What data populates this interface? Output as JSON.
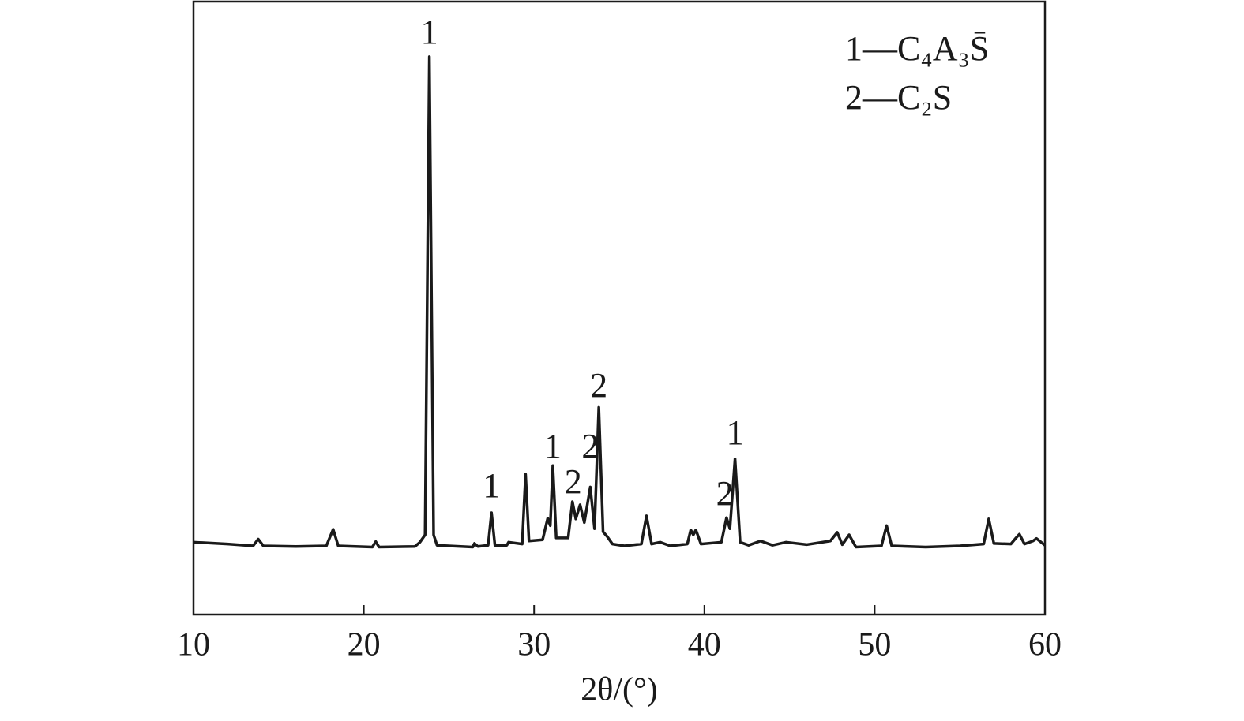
{
  "chart_data": {
    "type": "line",
    "x_label": "2θ/(°)",
    "xlim": [
      10,
      60
    ],
    "xticks": [
      10,
      20,
      30,
      40,
      50,
      60
    ],
    "ylim": [
      0,
      100
    ],
    "legend": [
      "1—C₄A₃S̄",
      "2—C₂S"
    ],
    "legend_position": "upper right",
    "series": [
      {
        "color": "#1a1a1a",
        "x": [
          10,
          12,
          13.5,
          13.8,
          14.1,
          16,
          17.8,
          18.2,
          18.5,
          20.5,
          20.7,
          20.9,
          23,
          23.3,
          23.6,
          23.75,
          23.85,
          23.95,
          24.1,
          24.3,
          26.4,
          26.5,
          26.7,
          27.3,
          27.5,
          27.7,
          28.4,
          28.5,
          29.3,
          29.5,
          29.7,
          30.5,
          30.8,
          30.95,
          31.1,
          31.3,
          32.0,
          32.25,
          32.45,
          32.7,
          32.95,
          33.3,
          33.55,
          33.8,
          34.05,
          34.3,
          34.6,
          35.3,
          36.3,
          36.6,
          36.9,
          37.4,
          38,
          39.0,
          39.2,
          39.35,
          39.5,
          39.8,
          41.0,
          41.3,
          41.5,
          41.8,
          42.1,
          42.6,
          43.3,
          44,
          44.8,
          46,
          47.4,
          47.8,
          48.1,
          48.5,
          48.9,
          50.4,
          50.7,
          51.0,
          53,
          55,
          56.4,
          56.7,
          57.0,
          58.0,
          58.3,
          58.5,
          58.8,
          59.3,
          59.5,
          60
        ],
        "values": [
          11.8,
          11.5,
          11.2,
          12.3,
          11.2,
          11.1,
          11.2,
          13.9,
          11.2,
          11.0,
          11.9,
          11.0,
          11.1,
          11.8,
          13,
          60,
          91.0,
          60,
          13,
          11.3,
          11.0,
          11.6,
          11.1,
          11.3,
          16.6,
          11.3,
          11.3,
          11.8,
          11.5,
          22.9,
          12.0,
          12.2,
          15.7,
          14.5,
          24.3,
          12.5,
          12.5,
          18.4,
          15.6,
          17.9,
          15.0,
          20.8,
          14.0,
          33.8,
          13.5,
          12.7,
          11.5,
          11.2,
          11.5,
          16.1,
          11.5,
          11.8,
          11.2,
          11.5,
          13.8,
          13.0,
          13.8,
          11.5,
          11.8,
          15.8,
          14.0,
          25.4,
          11.8,
          11.3,
          12.0,
          11.3,
          11.8,
          11.4,
          12.0,
          13.4,
          11.4,
          13.0,
          11.0,
          11.2,
          14.5,
          11.2,
          11.0,
          11.2,
          11.5,
          15.6,
          11.6,
          11.5,
          12.5,
          13.1,
          11.5,
          12.0,
          12.4,
          11.3
        ]
      }
    ],
    "annotations": [
      {
        "text": "1",
        "x": 23.85,
        "y": 94.5
      },
      {
        "text": "1",
        "x": 27.5,
        "y": 20.5
      },
      {
        "text": "1",
        "x": 31.1,
        "y": 26.9
      },
      {
        "text": "2",
        "x": 32.3,
        "y": 21.1
      },
      {
        "text": "2",
        "x": 33.3,
        "y": 26.9
      },
      {
        "text": "2",
        "x": 33.8,
        "y": 36.8
      },
      {
        "text": "2",
        "x": 41.2,
        "y": 19.2
      },
      {
        "text": "1",
        "x": 41.8,
        "y": 29.1
      }
    ]
  }
}
